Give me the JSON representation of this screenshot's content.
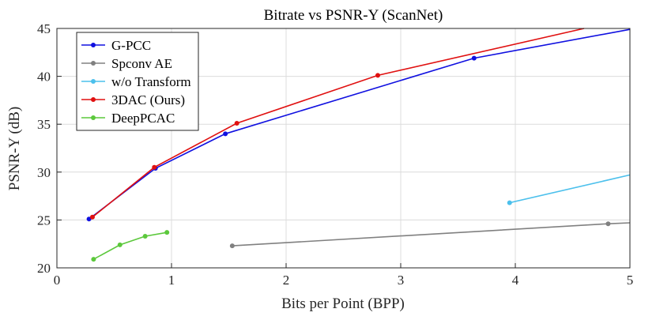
{
  "chart_data": {
    "type": "line",
    "title": "Bitrate vs PSNR-Y (ScanNet)",
    "xlabel": "Bits per Point (BPP)",
    "ylabel": "PSNR-Y (dB)",
    "xlim": [
      0,
      5
    ],
    "ylim": [
      20,
      45
    ],
    "xticks": [
      "0",
      "1",
      "2",
      "3",
      "4",
      "5"
    ],
    "yticks": [
      "20",
      "25",
      "30",
      "35",
      "40",
      "45"
    ],
    "grid": true,
    "legend_position": "top-left",
    "series": [
      {
        "name": "G-PCC",
        "color": "#1010e0",
        "points": [
          [
            0.28,
            25.1
          ],
          [
            0.86,
            30.4
          ],
          [
            1.47,
            34.0
          ],
          [
            3.64,
            41.9
          ],
          [
            5.0,
            44.9
          ]
        ],
        "markers": [
          true,
          true,
          true,
          true,
          false
        ]
      },
      {
        "name": "Spconv AE",
        "color": "#808080",
        "points": [
          [
            1.53,
            22.3
          ],
          [
            4.81,
            24.6
          ],
          [
            5.0,
            24.7
          ]
        ],
        "markers": [
          true,
          true,
          false
        ]
      },
      {
        "name": "w/o Transform",
        "color": "#4cc0ec",
        "points": [
          [
            3.95,
            26.8
          ],
          [
            5.0,
            29.7
          ]
        ],
        "markers": [
          true,
          false
        ]
      },
      {
        "name": "3DAC (Ours)",
        "color": "#e01010",
        "points": [
          [
            0.31,
            25.3
          ],
          [
            0.85,
            30.5
          ],
          [
            1.57,
            35.1
          ],
          [
            2.8,
            40.1
          ],
          [
            4.6,
            45.0
          ]
        ],
        "markers": [
          true,
          true,
          true,
          true,
          false
        ]
      },
      {
        "name": "DeepPCAC",
        "color": "#5cc83c",
        "points": [
          [
            0.32,
            20.9
          ],
          [
            0.55,
            22.4
          ],
          [
            0.77,
            23.3
          ],
          [
            0.96,
            23.7
          ]
        ],
        "markers": [
          true,
          true,
          true,
          true
        ]
      }
    ]
  }
}
